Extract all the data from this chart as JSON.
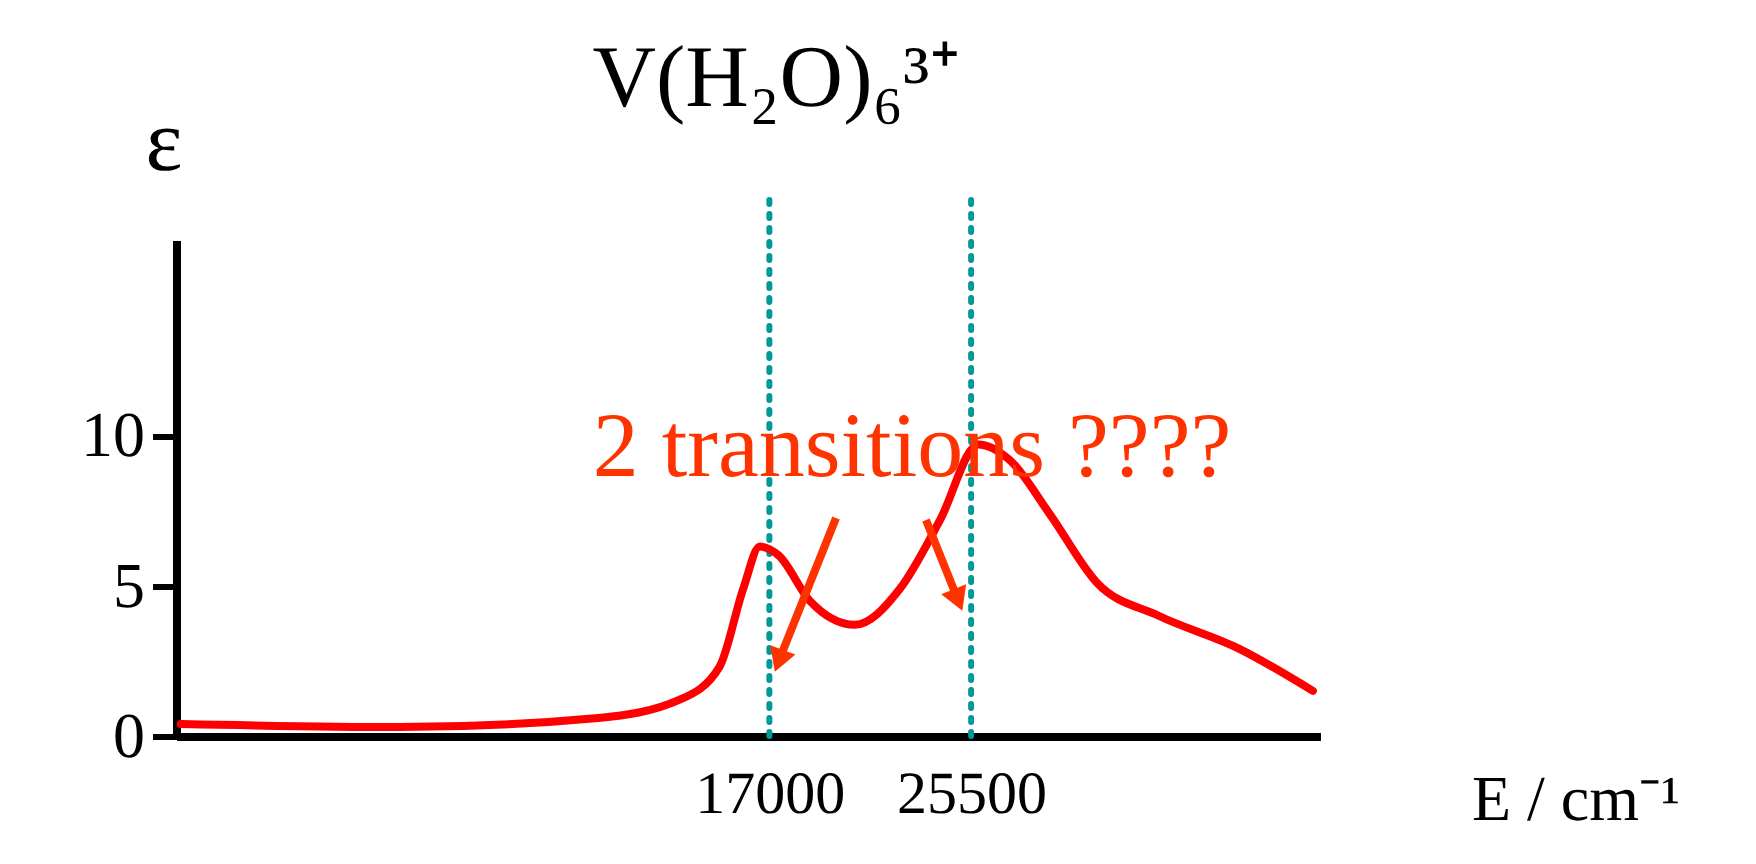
{
  "chart_data": {
    "type": "line",
    "title": "V(H₂O)₆³⁺",
    "xlabel": "E / cm⁻¹",
    "ylabel": "ε",
    "x": [
      -7800,
      1400,
      9800,
      13200,
      14900,
      15900,
      16600,
      17400,
      18700,
      20600,
      22500,
      24200,
      25800,
      27100,
      28800,
      30800,
      33400,
      36800,
      39900
    ],
    "series": [
      {
        "color": "#ff0000",
        "values": [
          0.4,
          0.3,
          0.6,
          1.2,
          2.3,
          4.9,
          6.3,
          6.0,
          4.5,
          3.7,
          4.9,
          7.2,
          9.7,
          9.2,
          7.4,
          5.1,
          4.0,
          2.9,
          1.5
        ]
      }
    ],
    "xlim": [
      -8000,
      40200
    ],
    "xticks": [
      17000,
      25500
    ],
    "ylim": [
      0,
      16.5
    ],
    "yticks": [
      0,
      5,
      10
    ],
    "ref_lines": [
      {
        "axis": "x",
        "value": 17000,
        "color": "#009999",
        "line_style": "dotted"
      },
      {
        "axis": "x",
        "value": 25500,
        "color": "#009999",
        "line_style": "dotted"
      }
    ],
    "annotations": [
      {
        "text": "2 transitions ????",
        "x": 17400,
        "y": 2.5
      }
    ],
    "grid": false,
    "marker": "none",
    "line_style": "solid"
  }
}
